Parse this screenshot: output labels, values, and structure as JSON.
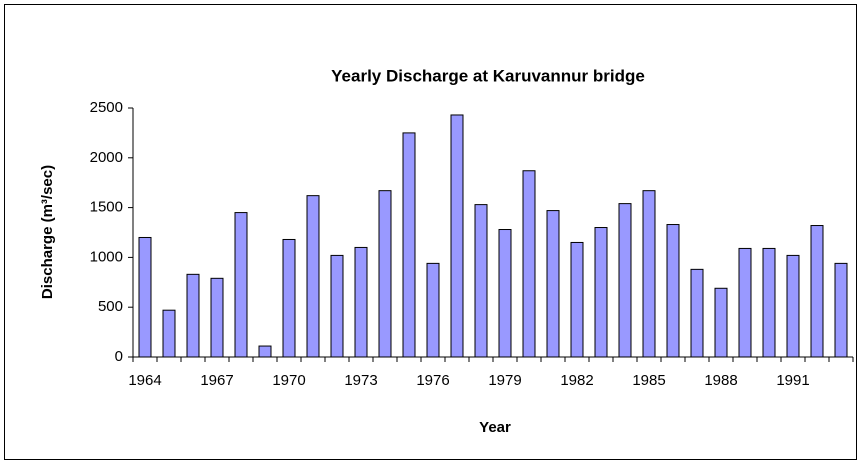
{
  "chart_data": {
    "type": "bar",
    "title": "Yearly Discharge at Karuvannur bridge",
    "x_label": "Year",
    "y_label": "Discharge (m³/sec)",
    "categories": [
      "1964",
      null,
      null,
      "1967",
      null,
      null,
      "1970",
      null,
      null,
      "1973",
      null,
      null,
      "1976",
      null,
      null,
      "1979",
      null,
      null,
      "1982",
      null,
      null,
      "1985",
      null,
      null,
      "1988",
      null,
      null,
      "1991",
      null,
      null
    ],
    "values": [
      1200,
      470,
      830,
      790,
      1450,
      110,
      1180,
      1620,
      1020,
      1100,
      1670,
      2250,
      940,
      2430,
      1530,
      1280,
      1870,
      1470,
      1150,
      1300,
      1540,
      1670,
      1330,
      880,
      690,
      1090,
      1090,
      1020,
      1320,
      940
    ],
    "color": "#9999ff",
    "ylim": [
      0,
      2500
    ],
    "yticks": [
      0,
      500,
      1000,
      1500,
      2000,
      2500
    ],
    "grid": false
  }
}
